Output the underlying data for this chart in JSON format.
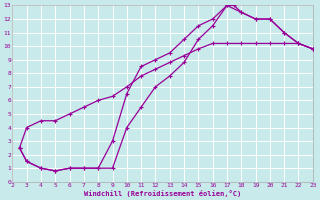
{
  "xlabel": "Windchill (Refroidissement éolien,°C)",
  "bg_color": "#c8eaea",
  "grid_color": "#ffffff",
  "line_color": "#990099",
  "xlim": [
    2,
    23
  ],
  "ylim": [
    0,
    13
  ],
  "xticks": [
    2,
    3,
    4,
    5,
    6,
    7,
    8,
    9,
    10,
    11,
    12,
    13,
    14,
    15,
    16,
    17,
    18,
    19,
    20,
    21,
    22,
    23
  ],
  "yticks": [
    0,
    1,
    2,
    3,
    4,
    5,
    6,
    7,
    8,
    9,
    10,
    11,
    12,
    13
  ],
  "curve_upper_x": [
    2.5,
    3,
    4,
    5,
    6,
    7,
    8,
    9,
    10,
    11,
    12,
    13,
    14,
    15,
    16,
    17,
    18,
    19,
    20,
    21,
    22,
    23
  ],
  "curve_upper_y": [
    2.5,
    4.0,
    4.5,
    4.5,
    5.0,
    5.5,
    6.0,
    6.3,
    7.0,
    7.8,
    8.3,
    8.8,
    9.3,
    9.8,
    10.2,
    10.2,
    10.2,
    10.2,
    10.2,
    10.2,
    10.2,
    9.8
  ],
  "curve_mid_x": [
    2.5,
    3,
    4,
    5,
    6,
    7,
    8,
    9,
    10,
    11,
    12,
    13,
    14,
    15,
    16,
    17,
    18,
    19,
    20,
    21,
    22,
    23
  ],
  "curve_mid_y": [
    2.5,
    1.5,
    1.0,
    0.8,
    1.0,
    1.0,
    1.0,
    3.0,
    6.5,
    8.5,
    9.0,
    9.5,
    10.5,
    11.5,
    12.0,
    13.0,
    12.5,
    12.0,
    12.0,
    11.0,
    10.2,
    9.8
  ],
  "curve_low_x": [
    2.5,
    3,
    4,
    5,
    6,
    7,
    8,
    9,
    10,
    11,
    12,
    13,
    14,
    15,
    16,
    17,
    17.5,
    18,
    19,
    20,
    21,
    22,
    23
  ],
  "curve_low_y": [
    2.5,
    1.5,
    1.0,
    0.8,
    1.0,
    1.0,
    1.0,
    1.0,
    4.0,
    5.5,
    7.0,
    7.8,
    8.8,
    10.5,
    11.5,
    13.0,
    13.0,
    12.5,
    12.0,
    12.0,
    11.0,
    10.2,
    9.8
  ]
}
